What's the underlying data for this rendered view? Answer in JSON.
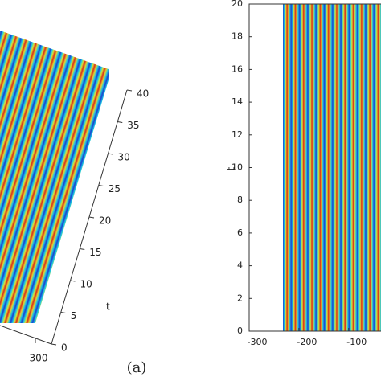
{
  "chart_data": [
    {
      "type": "surface3d",
      "ylabel": "t",
      "ylim": [
        0,
        40
      ],
      "yticks": [
        0,
        5,
        10,
        15,
        20,
        25,
        30,
        35,
        40
      ],
      "xticks": [
        300
      ],
      "caption": "(a)"
    },
    {
      "type": "heatmap",
      "ylabel": "t",
      "ylim": [
        0,
        20
      ],
      "yticks": [
        0,
        2,
        4,
        6,
        8,
        10,
        12,
        14,
        16,
        18,
        20
      ],
      "xlim": [
        -300,
        -35
      ],
      "xticks": [
        -300,
        -200,
        -100
      ]
    }
  ]
}
